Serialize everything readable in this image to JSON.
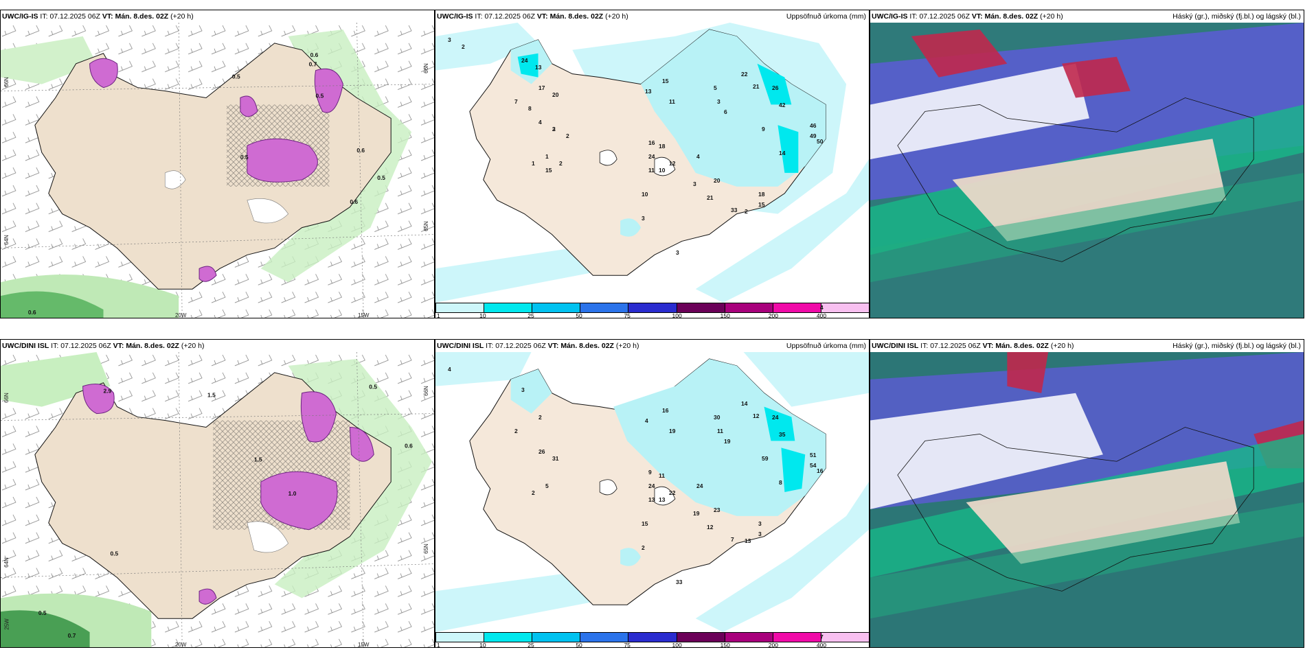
{
  "rows": [
    {
      "model": "UWC/IG-IS",
      "it_label": "IT:",
      "it_value": "07.12.2025 06Z",
      "vt_label": "VT:",
      "vt_value": "Mán. 8.des. 02Z",
      "lead": "(+20 h)",
      "wind_numbers": [
        "0.6",
        "0.7",
        "0.5",
        "0.5",
        "0.5",
        "0.6",
        "0.6",
        "0.5",
        "0.6"
      ],
      "precip_numbers": [
        "3",
        "24",
        "17",
        "7",
        "4",
        "2",
        "1",
        "1",
        "13",
        "15",
        "11",
        "5",
        "3",
        "6",
        "22",
        "21",
        "26",
        "42",
        "46",
        "49",
        "9",
        "50",
        "14",
        "16",
        "18",
        "24",
        "12",
        "10",
        "11",
        "4",
        "20",
        "3",
        "10",
        "21",
        "33",
        "18",
        "15",
        "2",
        "3",
        "3",
        "4",
        "2",
        "13",
        "20",
        "8",
        "3",
        "2",
        "2",
        "15"
      ]
    },
    {
      "model": "UWC/DINI ISL",
      "it_label": "IT:",
      "it_value": "07.12.2025 06Z",
      "vt_label": "VT:",
      "vt_value": "Mán. 8.des. 02Z",
      "lead": "(+20 h)",
      "wind_numbers": [
        "1.5",
        "0.5",
        "2.9",
        "1.5",
        "0.6",
        "0.5",
        "0.5",
        "0.7",
        "1.0"
      ],
      "precip_numbers": [
        "4",
        "3",
        "2",
        "2",
        "26",
        "31",
        "5",
        "2",
        "4",
        "16",
        "19",
        "30",
        "11",
        "19",
        "14",
        "12",
        "24",
        "35",
        "51",
        "54",
        "59",
        "16",
        "8",
        "9",
        "11",
        "24",
        "22",
        "13",
        "13",
        "24",
        "23",
        "19",
        "15",
        "12",
        "7",
        "3",
        "3",
        "13",
        "33",
        "2",
        "7"
      ]
    }
  ],
  "panel_titles": {
    "precip": "Uppsöfnuð úrkoma (mm)",
    "cloud": "Háský (gr.), miðský (fj.bl.) og lágský (bl.)"
  },
  "axis_ticks": {
    "lat_a": "66N",
    "lat_b": "65N",
    "lat_c": "64N",
    "lon_a": "20W",
    "lon_b": "15W",
    "lon_c": "25W"
  },
  "colorbar": {
    "ticks": [
      "1",
      "10",
      "25",
      "50",
      "75",
      "100",
      "150",
      "200",
      "400"
    ],
    "colors": [
      "#cdf6fa",
      "#00e8ee",
      "#00c2f0",
      "#2b73ea",
      "#2a2ccf",
      "#6b0058",
      "#a8007c",
      "#f00aa8",
      "#f8c0f0"
    ]
  }
}
